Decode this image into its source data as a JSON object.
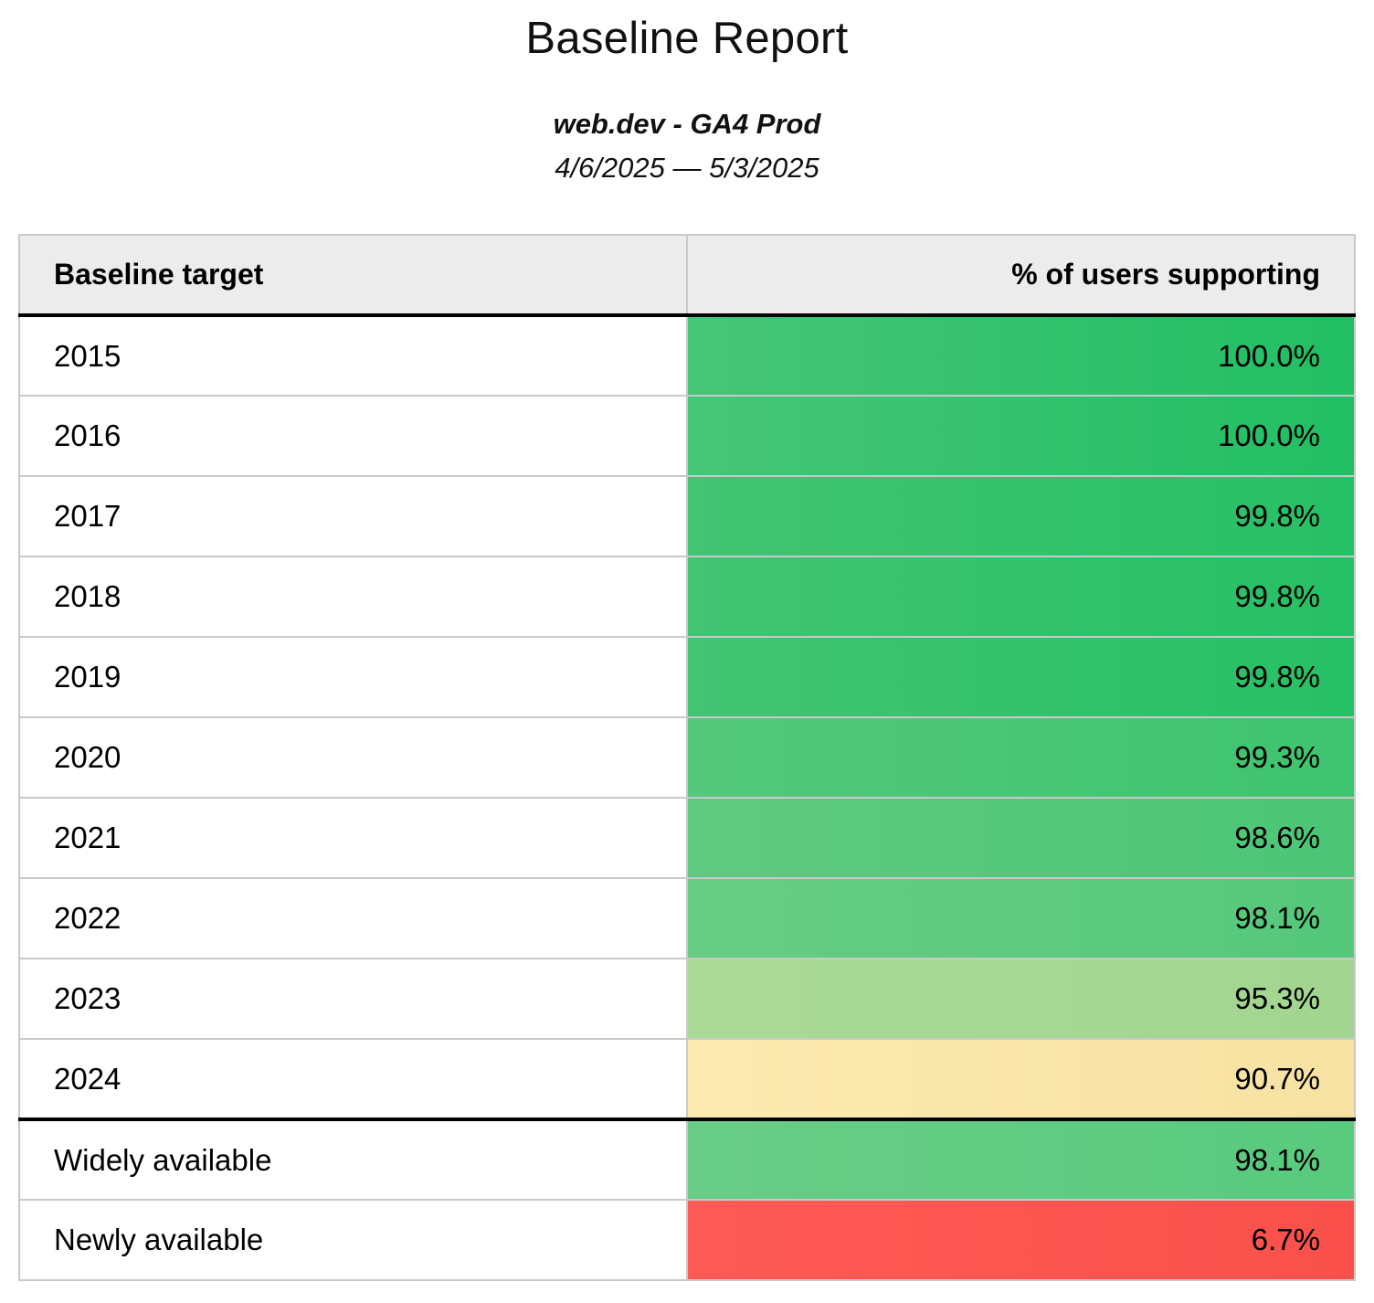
{
  "report": {
    "title": "Baseline Report",
    "subtitle": "web.dev - GA4 Prod",
    "date_range": "4/6/2025 — 5/3/2025"
  },
  "table": {
    "columns": [
      "Baseline target",
      "% of users supporting"
    ],
    "rows": [
      {
        "label": "2015",
        "value": "100.0%",
        "color_left": "#47c578",
        "color_right": "#21bf63"
      },
      {
        "label": "2016",
        "value": "100.0%",
        "color_left": "#47c578",
        "color_right": "#21bf63"
      },
      {
        "label": "2017",
        "value": "99.8%",
        "color_left": "#42c473",
        "color_right": "#27c065"
      },
      {
        "label": "2018",
        "value": "99.8%",
        "color_left": "#42c473",
        "color_right": "#27c065"
      },
      {
        "label": "2019",
        "value": "99.8%",
        "color_left": "#42c473",
        "color_right": "#27c065"
      },
      {
        "label": "2020",
        "value": "99.3%",
        "color_left": "#54c87b",
        "color_right": "#3ec46f"
      },
      {
        "label": "2021",
        "value": "98.6%",
        "color_left": "#5fca80",
        "color_right": "#4cc576"
      },
      {
        "label": "2022",
        "value": "98.1%",
        "color_left": "#66cc84",
        "color_right": "#55c87b"
      },
      {
        "label": "2023",
        "value": "95.3%",
        "color_left": "#aad998",
        "color_right": "#a2d590"
      },
      {
        "label": "2024",
        "value": "90.7%",
        "color_left": "#fdeab0",
        "color_right": "#f6e2a2"
      },
      {
        "label": "Widely available",
        "value": "98.1%",
        "color_left": "#69cd86",
        "color_right": "#58ca7e"
      },
      {
        "label": "Newly available",
        "value": "6.7%",
        "color_left": "#ff5b56",
        "color_right": "#f9504b"
      }
    ]
  }
}
